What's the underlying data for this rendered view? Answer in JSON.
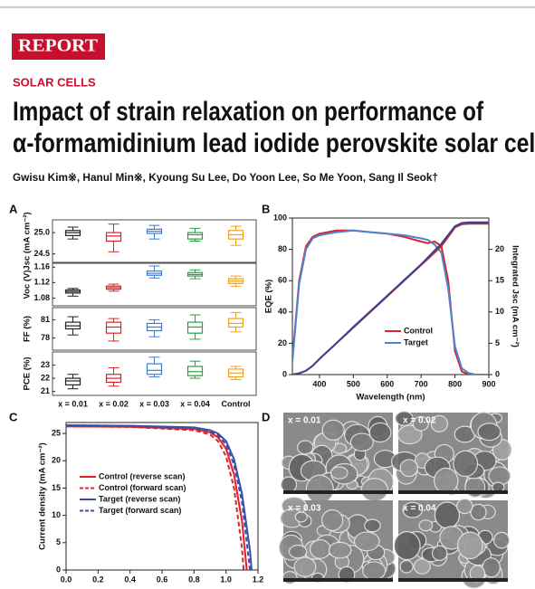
{
  "header": {
    "label": "REPORT",
    "section": "SOLAR CELLS",
    "title_lines": [
      "Impact of strain relaxation on performance of",
      "α-formamidinium lead iodide perovskite solar cells"
    ],
    "authors": "Gwisu Kim※, Hanul Min※, Kyoung Su Lee, Do Yoon Lee, So Me Yoon, Sang Il Seok†"
  },
  "panels": [
    "A",
    "B",
    "C",
    "D"
  ],
  "micrographs": [
    "x = 0.01",
    "x = 0.02",
    "x = 0.03",
    "x = 0.04"
  ],
  "chart_data": [
    {
      "type": "box",
      "ylabel": "Jsc (mA cm⁻²)",
      "ylim": [
        24.3,
        25.3
      ],
      "yticks": [
        24.5,
        {
          "value": 25,
          "label": "25.0"
        }
      ],
      "colors": [
        "#222222",
        "#e02020",
        "#3a7dd0",
        "#2aa040",
        "#f0a020"
      ],
      "boxes": [
        [
          24.85,
          24.93,
          25.0,
          25.05,
          25.13
        ],
        [
          24.55,
          24.8,
          24.92,
          25.0,
          25.2
        ],
        [
          24.85,
          24.98,
          25.03,
          25.08,
          25.17
        ],
        [
          24.8,
          24.85,
          24.95,
          25.0,
          25.1
        ],
        [
          24.7,
          24.85,
          24.95,
          25.05,
          25.15
        ]
      ]
    },
    {
      "type": "box",
      "ylabel": "Voc (V)",
      "ylim": [
        1.06,
        1.17
      ],
      "yticks": [
        1.08,
        1.12,
        1.16
      ],
      "colors": [
        "#222222",
        "#e02020",
        "#3a7dd0",
        "#2aa040",
        "#f0a020"
      ],
      "boxes": [
        [
          1.085,
          1.093,
          1.097,
          1.101,
          1.105
        ],
        [
          1.098,
          1.103,
          1.107,
          1.111,
          1.116
        ],
        [
          1.132,
          1.139,
          1.144,
          1.15,
          1.163
        ],
        [
          1.13,
          1.137,
          1.141,
          1.146,
          1.153
        ],
        [
          1.11,
          1.118,
          1.124,
          1.13,
          1.137
        ]
      ]
    },
    {
      "type": "box",
      "ylabel": "FF (%)",
      "ylim": [
        76,
        83
      ],
      "yticks": [
        78,
        81
      ],
      "colors": [
        "#222222",
        "#e02020",
        "#3a7dd0",
        "#2aa040",
        "#f0a020"
      ],
      "boxes": [
        [
          78.5,
          79.5,
          80.0,
          80.6,
          81.5
        ],
        [
          77.5,
          78.8,
          79.8,
          80.6,
          81.2
        ],
        [
          78.2,
          79.2,
          79.8,
          80.4,
          81.0
        ],
        [
          77.8,
          78.8,
          79.8,
          80.6,
          81.8
        ],
        [
          79.0,
          79.8,
          80.4,
          81.2,
          82.2
        ]
      ]
    },
    {
      "type": "box",
      "ylabel": "PCE (%)",
      "ylim": [
        20.7,
        24
      ],
      "yticks": [
        21,
        22,
        23
      ],
      "categories": [
        "x = 0.01",
        "x = 0.02",
        "x = 0.03",
        "x = 0.04",
        "Control"
      ],
      "colors": [
        "#222222",
        "#e02020",
        "#3a7dd0",
        "#2aa040",
        "#f0a020"
      ],
      "boxes": [
        [
          21.2,
          21.5,
          21.8,
          22.0,
          22.3
        ],
        [
          21.4,
          21.7,
          22.0,
          22.3,
          22.8
        ],
        [
          22.1,
          22.3,
          22.6,
          23.1,
          23.6
        ],
        [
          22.0,
          22.2,
          22.5,
          22.9,
          23.3
        ],
        [
          21.9,
          22.1,
          22.4,
          22.7,
          22.9
        ]
      ]
    },
    {
      "type": "line",
      "xlabel": "Wavelength (nm)",
      "ylabel": "EQE (%)",
      "y2label": "Integrated Jsc (mA cm⁻²)",
      "xlim": [
        320,
        900
      ],
      "xticks": [
        400,
        500,
        600,
        700,
        800,
        900
      ],
      "ylim": [
        0,
        100
      ],
      "yticks": [
        0,
        20,
        40,
        60,
        80,
        100
      ],
      "y2lim": [
        0,
        25
      ],
      "y2ticks": [
        0,
        5,
        10,
        15,
        20
      ],
      "legend": "lower-center",
      "x": [
        320,
        340,
        360,
        380,
        400,
        450,
        500,
        550,
        600,
        650,
        700,
        720,
        740,
        760,
        780,
        800,
        820,
        840,
        860,
        900
      ],
      "series": [
        {
          "name": "Control",
          "color": "#e0202a",
          "values": [
            10,
            60,
            82,
            88,
            90,
            92,
            92,
            91,
            90,
            88,
            85,
            84,
            85,
            82,
            60,
            15,
            2,
            0,
            0,
            0
          ]
        },
        {
          "name": "Target",
          "color": "#4a86d0",
          "values": [
            8,
            58,
            80,
            87,
            89,
            91,
            92,
            91,
            90,
            89,
            87,
            86,
            83,
            78,
            55,
            18,
            4,
            1,
            0,
            0
          ]
        },
        {
          "axis": "y2",
          "color": "#c0302a",
          "values": [
            0,
            0.2,
            0.6,
            1.4,
            2.5,
            5.0,
            7.5,
            10.0,
            12.5,
            15.0,
            17.5,
            18.5,
            19.5,
            20.5,
            22.0,
            23.5,
            24.0,
            24.1,
            24.1,
            24.1
          ]
        },
        {
          "axis": "y2",
          "color": "#3a3f9a",
          "values": [
            0,
            0.2,
            0.6,
            1.4,
            2.5,
            5.0,
            7.6,
            10.1,
            12.6,
            15.1,
            17.6,
            18.7,
            19.8,
            20.9,
            22.3,
            23.7,
            24.2,
            24.3,
            24.3,
            24.3
          ]
        }
      ]
    },
    {
      "type": "line",
      "ylabel": "Current density (mA cm⁻²)",
      "xlim": [
        0,
        1.2
      ],
      "xticks": [
        {
          "value": 0,
          "label": "0.0"
        },
        0.2,
        0.4,
        0.6,
        0.8,
        {
          "value": 1,
          "label": "1.0"
        },
        1.2
      ],
      "ylim": [
        0,
        27
      ],
      "yticks": [
        0,
        5,
        10,
        15,
        20,
        25
      ],
      "legend": "center-left",
      "series": [
        {
          "name": "Control (reverse scan)",
          "color": "#e0202a",
          "dash": false,
          "x": [
            0,
            0.4,
            0.8,
            0.9,
            0.95,
            1.0,
            1.05,
            1.1,
            1.13
          ],
          "values": [
            26.3,
            26.2,
            25.8,
            25.2,
            24.3,
            22.2,
            17.5,
            9,
            0
          ]
        },
        {
          "name": "Control (forward scan)",
          "color": "#e0202a",
          "dash": true,
          "x": [
            0,
            0.4,
            0.8,
            0.9,
            0.95,
            1.0,
            1.05,
            1.1,
            1.11
          ],
          "values": [
            26.3,
            26.2,
            25.6,
            24.8,
            23.6,
            20.8,
            15,
            4,
            0
          ]
        },
        {
          "name": "Target (reverse scan)",
          "color": "#3a4fa8",
          "dash": false,
          "x": [
            0,
            0.4,
            0.8,
            0.9,
            0.95,
            1.0,
            1.05,
            1.1,
            1.15,
            1.16
          ],
          "values": [
            26.5,
            26.4,
            26.1,
            25.6,
            25.0,
            23.6,
            20.3,
            14,
            3.5,
            0
          ]
        },
        {
          "name": "Target (forward scan)",
          "color": "#3a4fa8",
          "dash": true,
          "x": [
            0,
            0.4,
            0.8,
            0.9,
            0.95,
            1.0,
            1.05,
            1.1,
            1.15
          ],
          "values": [
            26.5,
            26.4,
            26.0,
            25.4,
            24.7,
            23.0,
            19.3,
            12.5,
            0
          ]
        }
      ]
    }
  ]
}
